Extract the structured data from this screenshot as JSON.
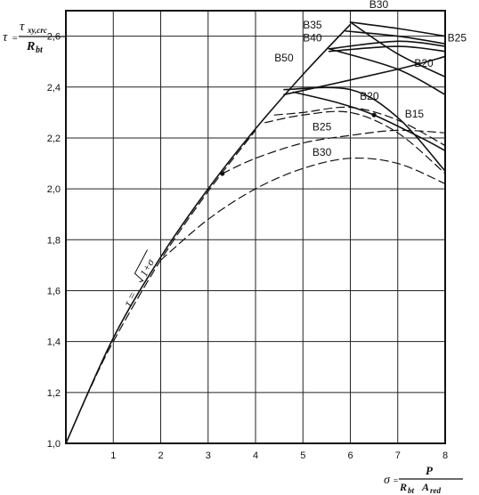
{
  "chart_data": {
    "type": "line",
    "ylabel": {
      "symbol": "τ",
      "numerator": "τ",
      "numerator_sub": "xy,crc",
      "denominator": "R",
      "denominator_sub": "bt"
    },
    "xlabel": {
      "symbol": "σ",
      "numerator": "P",
      "denominator": "R",
      "denominator_sub": "bt",
      "denominator_tail": "A",
      "denominator_tail_sub": "red"
    },
    "formula_label": {
      "prefix": "τ = ",
      "radicand": "1+σ"
    },
    "xlim": [
      0,
      8
    ],
    "ylim": [
      1.0,
      2.7
    ],
    "x_ticks": [
      1,
      2,
      3,
      4,
      5,
      6,
      7,
      8
    ],
    "x_tick_labels": [
      "1",
      "2",
      "3",
      "4",
      "5",
      "6",
      "7",
      "8"
    ],
    "y_ticks": [
      1.0,
      1.2,
      1.4,
      1.6,
      1.8,
      2.0,
      2.2,
      2.4,
      2.6
    ],
    "y_tick_labels": [
      "1,0",
      "1,2",
      "1,4",
      "1,6",
      "1,8",
      "2,0",
      "2,2",
      "2,4",
      "2,6"
    ],
    "grid": true,
    "series": [
      {
        "name": "τ = √(1+σ)",
        "style": "solid",
        "x": [
          0,
          1,
          2,
          3,
          4,
          5,
          6
        ],
        "y": [
          1.0,
          1.414,
          1.732,
          2.0,
          2.236,
          2.449,
          2.646
        ]
      },
      {
        "style": "solid",
        "x": [
          6,
          7,
          8
        ],
        "y": [
          2.655,
          2.63,
          2.6
        ]
      },
      {
        "style": "solid",
        "x": [
          5.9,
          7,
          8
        ],
        "y": [
          2.62,
          2.6,
          2.57
        ]
      },
      {
        "style": "solid",
        "x": [
          5.55,
          7,
          8
        ],
        "y": [
          2.55,
          2.58,
          2.56
        ]
      },
      {
        "style": "solid",
        "x": [
          5.55,
          7,
          8
        ],
        "y": [
          2.54,
          2.56,
          2.54
        ]
      },
      {
        "style": "solid",
        "x": [
          6.0,
          7,
          8
        ],
        "y": [
          2.655,
          2.53,
          2.44
        ]
      },
      {
        "style": "solid",
        "x": [
          5.55,
          7,
          8
        ],
        "y": [
          2.55,
          2.47,
          2.37
        ]
      },
      {
        "style": "solid",
        "x": [
          4.6,
          7,
          8
        ],
        "y": [
          2.37,
          2.47,
          2.52
        ]
      },
      {
        "style": "solid",
        "x": [
          4.6,
          6,
          7,
          8
        ],
        "y": [
          2.39,
          2.39,
          2.28,
          2.07
        ]
      },
      {
        "style": "solid",
        "x": [
          4.8,
          5.7,
          6.5,
          7.5,
          8
        ],
        "y": [
          2.38,
          2.34,
          2.29,
          2.2,
          2.15
        ]
      },
      {
        "style": "dashed",
        "x": [
          4.4,
          5,
          6,
          7,
          8
        ],
        "y": [
          2.29,
          2.3,
          2.32,
          2.27,
          2.17
        ]
      },
      {
        "style": "dashed",
        "x": [
          4.2,
          5,
          6,
          7,
          8
        ],
        "y": [
          2.26,
          2.29,
          2.3,
          2.22,
          2.06
        ]
      },
      {
        "style": "dashed",
        "x": [
          3.3,
          4,
          5,
          6,
          7,
          8
        ],
        "y": [
          2.06,
          2.12,
          2.18,
          2.21,
          2.23,
          2.22
        ]
      },
      {
        "style": "dashed",
        "x": [
          2.0,
          3,
          4,
          5,
          6,
          7,
          8
        ],
        "y": [
          1.72,
          1.88,
          2.0,
          2.08,
          2.12,
          2.1,
          2.02
        ]
      },
      {
        "style": "dashed",
        "x": [
          0,
          0.5,
          1,
          2,
          3,
          4
        ],
        "y": [
          1.0,
          1.21,
          1.4,
          1.72,
          1.99,
          2.23
        ]
      }
    ],
    "markers": [
      {
        "x": 3.3,
        "y": 2.06
      },
      {
        "x": 6.5,
        "y": 2.29
      }
    ],
    "annotations": [
      {
        "text": "B30",
        "x": 6.4,
        "y": 2.71
      },
      {
        "text": "B35",
        "x": 5.0,
        "y": 2.63
      },
      {
        "text": "B40",
        "x": 5.0,
        "y": 2.58
      },
      {
        "text": "B25",
        "x": 8.05,
        "y": 2.58
      },
      {
        "text": "B50",
        "x": 4.4,
        "y": 2.5
      },
      {
        "text": "B20",
        "x": 7.35,
        "y": 2.48
      },
      {
        "text": "B20",
        "x": 6.2,
        "y": 2.35
      },
      {
        "text": "B15",
        "x": 7.15,
        "y": 2.28
      },
      {
        "text": "B25",
        "x": 5.2,
        "y": 2.23
      },
      {
        "text": "B30",
        "x": 5.2,
        "y": 2.13
      }
    ]
  }
}
